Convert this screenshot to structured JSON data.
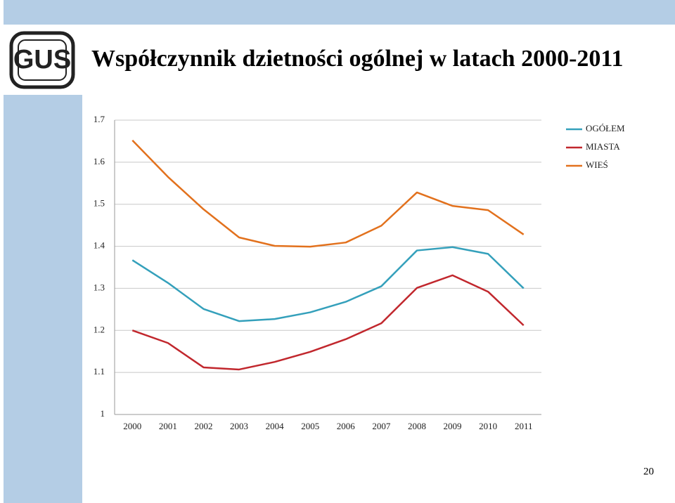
{
  "title": "Współczynnik dzietności ogólnej w latach 2000-2011",
  "logo_text": "GUS",
  "page_number": "20",
  "chart_data": {
    "type": "line",
    "categories": [
      "2000",
      "2001",
      "2002",
      "2003",
      "2004",
      "2005",
      "2006",
      "2007",
      "2008",
      "2009",
      "2010",
      "2011"
    ],
    "series": [
      {
        "name": "OGÓŁEM",
        "color": "#34a0bb",
        "values": [
          1.367,
          1.313,
          1.251,
          1.222,
          1.227,
          1.243,
          1.268,
          1.305,
          1.39,
          1.398,
          1.382,
          1.3
        ]
      },
      {
        "name": "MIASTA",
        "color": "#c1272d",
        "values": [
          1.2,
          1.17,
          1.112,
          1.107,
          1.125,
          1.149,
          1.179,
          1.217,
          1.301,
          1.331,
          1.292,
          1.212
        ]
      },
      {
        "name": "WIEŚ",
        "color": "#e2711d",
        "values": [
          1.652,
          1.565,
          1.488,
          1.421,
          1.401,
          1.399,
          1.409,
          1.449,
          1.528,
          1.496,
          1.486,
          1.428
        ]
      }
    ],
    "ylim": [
      1,
      1.7
    ],
    "yticks": [
      1,
      1.1,
      1.2,
      1.3,
      1.4,
      1.5,
      1.6,
      1.7
    ],
    "grid": true,
    "legend": "top-right"
  }
}
